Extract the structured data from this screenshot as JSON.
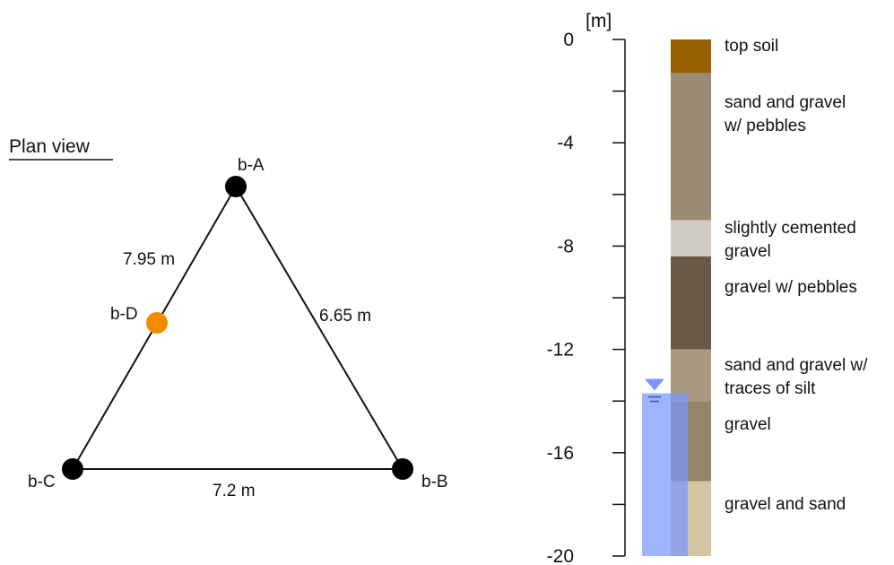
{
  "plan": {
    "title": "Plan view",
    "boreholes": [
      {
        "id": "A",
        "label": "b-A",
        "color": "#000000"
      },
      {
        "id": "B",
        "label": "b-B",
        "color": "#000000"
      },
      {
        "id": "C",
        "label": "b-C",
        "color": "#000000"
      },
      {
        "id": "D",
        "label": "b-D",
        "color": "#f28a00"
      }
    ],
    "distances": {
      "ca": "7.95 m",
      "ab": "6.65 m",
      "cb": "7.2 m"
    }
  },
  "profile": {
    "unit": "[m]",
    "ticks": [
      "0",
      "-4",
      "-8",
      "-12",
      "-16",
      "-20"
    ],
    "depth_range": [
      0,
      -20
    ],
    "water_table_depth": -13.7,
    "water_color": "#7a97ff",
    "layers": [
      {
        "label_lines": [
          "top soil"
        ],
        "top": 0,
        "bottom": -1.3,
        "color": "#965f00"
      },
      {
        "label_lines": [
          "sand and gravel",
          "w/ pebbles"
        ],
        "top": -1.3,
        "bottom": -7.0,
        "color": "#9b8b74"
      },
      {
        "label_lines": [
          "slightly cemented",
          "gravel"
        ],
        "top": -7.0,
        "bottom": -8.4,
        "color": "#d1cdc6"
      },
      {
        "label_lines": [
          "gravel w/ pebbles"
        ],
        "top": -8.4,
        "bottom": -12.0,
        "color": "#6a5a45"
      },
      {
        "label_lines": [
          "sand and gravel w/",
          "traces of silt"
        ],
        "top": -12.0,
        "bottom": -14.0,
        "color": "#a89a80"
      },
      {
        "label_lines": [
          "gravel"
        ],
        "top": -14.0,
        "bottom": -17.1,
        "color": "#958567"
      },
      {
        "label_lines": [
          "gravel and sand"
        ],
        "top": -17.1,
        "bottom": -20.0,
        "color": "#d4c3a3"
      }
    ]
  }
}
